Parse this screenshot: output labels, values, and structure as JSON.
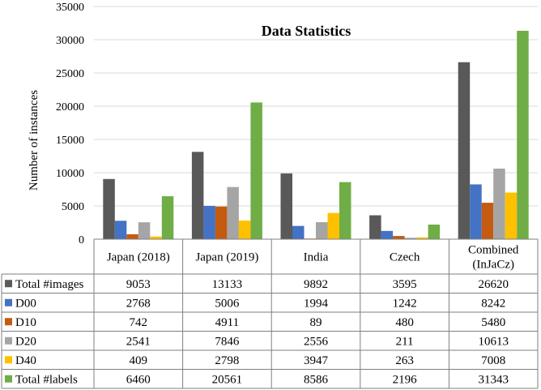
{
  "chart_data": {
    "type": "bar",
    "title": "Data Statistics",
    "ylabel": "Number of instances",
    "xlabel": "",
    "ylim": [
      0,
      35000
    ],
    "yticks": [
      0,
      5000,
      10000,
      15000,
      20000,
      25000,
      30000,
      35000
    ],
    "grid": true,
    "legend": "data-table",
    "categories": [
      [
        "Japan (2018)"
      ],
      [
        "Japan (2019)"
      ],
      [
        "India"
      ],
      [
        "Czech"
      ],
      [
        "Combined",
        "(InJaCz)"
      ]
    ],
    "series": [
      {
        "name": "Total #images",
        "color": "#595959",
        "values": [
          9053,
          13133,
          9892,
          3595,
          26620
        ]
      },
      {
        "name": "D00",
        "color": "#4472c4",
        "values": [
          2768,
          5006,
          1994,
          1242,
          8242
        ]
      },
      {
        "name": "D10",
        "color": "#c55a11",
        "values": [
          742,
          4911,
          89,
          480,
          5480
        ]
      },
      {
        "name": "D20",
        "color": "#a5a5a5",
        "values": [
          2541,
          7846,
          2556,
          211,
          10613
        ]
      },
      {
        "name": "D40",
        "color": "#ffc000",
        "values": [
          409,
          2798,
          3947,
          263,
          7008
        ]
      },
      {
        "name": "Total #labels",
        "color": "#70ad47",
        "values": [
          6460,
          20561,
          8586,
          2196,
          31343
        ]
      }
    ]
  }
}
